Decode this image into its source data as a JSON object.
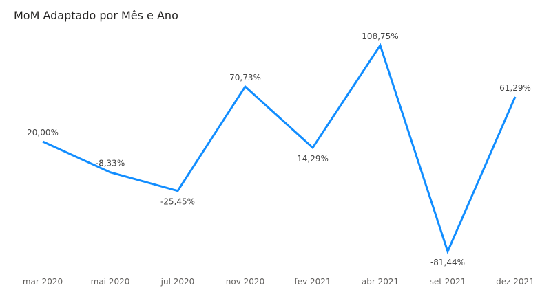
{
  "chart_data": {
    "type": "line",
    "title": "MoM Adaptado por Mês e Ano",
    "categories": [
      "mar 2020",
      "mai 2020",
      "jul 2020",
      "nov 2020",
      "fev 2021",
      "abr 2021",
      "set 2021",
      "dez 2021"
    ],
    "values": [
      20.0,
      -8.33,
      -25.45,
      70.73,
      14.29,
      108.75,
      -81.44,
      61.29
    ],
    "data_labels": [
      "20,00%",
      "-8,33%",
      "-25,45%",
      "70,73%",
      "14,29%",
      "108,75%",
      "-81,44%",
      "61,29%"
    ],
    "ylim": [
      -81.44,
      108.75
    ],
    "xlabel": "",
    "ylabel": "",
    "grid": false,
    "legend": "none",
    "series_color": "#118DFF"
  }
}
